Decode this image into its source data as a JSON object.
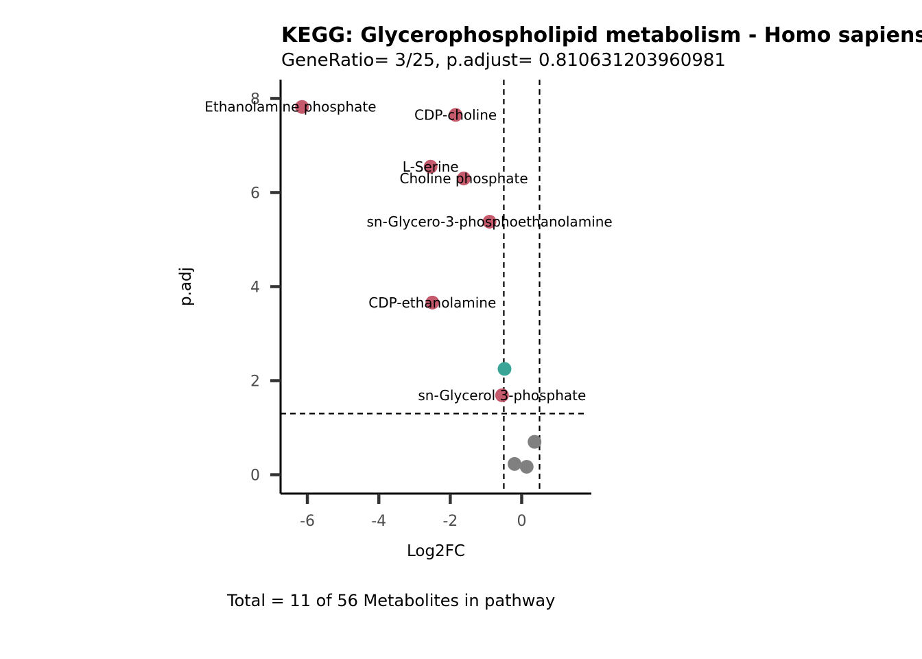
{
  "chart_data": {
    "type": "scatter",
    "title": "KEGG: Glycerophospholipid metabolism - Homo sapiens",
    "subtitle": "GeneRatio= 3/25, p.adjust= 0.810631203960981",
    "caption": "Total = 11 of 56 Metabolites in pathway",
    "xlabel": "Log2FC",
    "ylabel": "p.adj",
    "xlim": [
      -6.75,
      1.95
    ],
    "ylim": [
      -0.4,
      8.4
    ],
    "xticks": [
      -6,
      -4,
      -2,
      0
    ],
    "yticks": [
      0,
      2,
      4,
      6,
      8
    ],
    "thresholds": {
      "log2fc": [
        -0.5,
        0.5
      ],
      "padj": 1.3
    },
    "colors": {
      "significant_down": "#C45A6B",
      "significant_other": "#3AA597",
      "not_significant": "#808080",
      "axis": "#000000",
      "ticks": "#333333"
    },
    "points": [
      {
        "name": "Ethanolamine phosphate",
        "x": -6.15,
        "y": 7.82,
        "status": "significant_down",
        "label": "Ethanolamine phosphate",
        "label_side": "right"
      },
      {
        "name": "CDP-choline",
        "x": -1.85,
        "y": 7.65,
        "status": "significant_down",
        "label": "CDP-choline",
        "label_side": "center"
      },
      {
        "name": "L-Serine",
        "x": -2.55,
        "y": 6.55,
        "status": "significant_down",
        "label": "L-Serine",
        "label_side": "center"
      },
      {
        "name": "Choline phosphate",
        "x": -1.62,
        "y": 6.3,
        "status": "significant_down",
        "label": "Choline phosphate",
        "label_side": "center"
      },
      {
        "name": "sn-Glycero-3-phosphoethanolamine",
        "x": -0.9,
        "y": 5.38,
        "status": "significant_down",
        "label": "sn-Glycero-3-phosphoethanolamine",
        "label_side": "center"
      },
      {
        "name": "CDP-ethanolamine",
        "x": -2.5,
        "y": 3.66,
        "status": "significant_down",
        "label": "CDP-ethanolamine",
        "label_side": "center"
      },
      {
        "name": "",
        "x": -0.48,
        "y": 2.25,
        "status": "significant_other",
        "label": "",
        "label_side": "center"
      },
      {
        "name": "sn-Glycerol 3-phosphate",
        "x": -0.55,
        "y": 1.69,
        "status": "significant_down",
        "label": "sn-Glycerol 3-phosphate",
        "label_side": "center"
      },
      {
        "name": "",
        "x": 0.36,
        "y": 0.7,
        "status": "not_significant",
        "label": "",
        "label_side": "center"
      },
      {
        "name": "",
        "x": -0.2,
        "y": 0.23,
        "status": "not_significant",
        "label": "",
        "label_side": "center"
      },
      {
        "name": "",
        "x": 0.14,
        "y": 0.17,
        "status": "not_significant",
        "label": "",
        "label_side": "center"
      }
    ]
  }
}
